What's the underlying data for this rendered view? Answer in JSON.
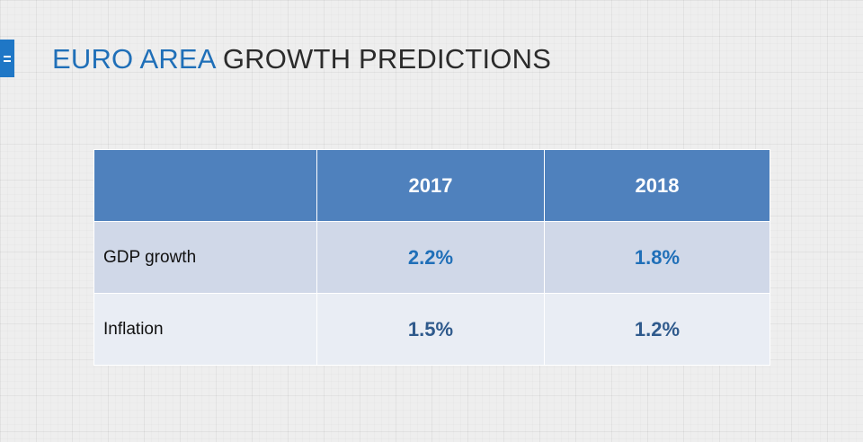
{
  "slide": {
    "title_accent": "EURO AREA",
    "title_rest": "GROWTH PREDICTIONS"
  },
  "table": {
    "header": [
      "",
      "2017",
      "2018"
    ],
    "rows": [
      {
        "label": "GDP growth",
        "values": [
          "2.2%",
          "1.8%"
        ]
      },
      {
        "label": "Inflation",
        "values": [
          "1.5%",
          "1.2%"
        ]
      }
    ]
  },
  "colors": {
    "accent": "#1f6fb8",
    "header_fill": "#4f81bd",
    "row_fill_odd": "#d0d8e8",
    "row_fill_even": "#e9edf4"
  },
  "icons": {
    "menu_tab": "hamburger-menu-icon"
  }
}
